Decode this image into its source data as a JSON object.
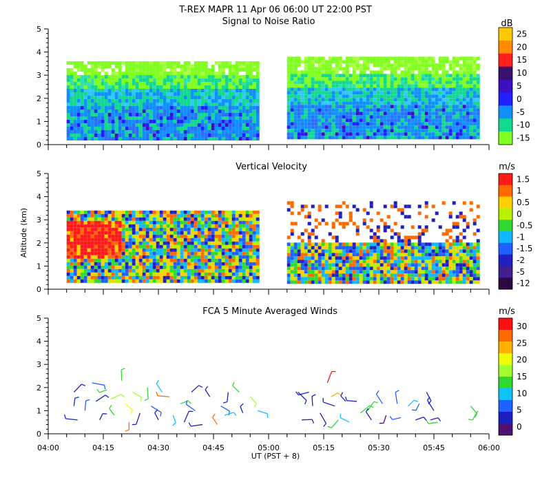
{
  "header": {
    "title": "T-REX   MAPR 11 Apr 06   06:00 UT   22:00   PST"
  },
  "common": {
    "ylabel": "Altitude (km)",
    "xlabel": "UT  (PST + 8)",
    "xticks": [
      "04:00",
      "04:15",
      "04:30",
      "04:45",
      "05:00",
      "05:15",
      "05:30",
      "05:45",
      "06:00"
    ]
  },
  "chart_data": [
    {
      "type": "heatmap",
      "title": "Signal to Noise Ratio",
      "unit": "dB",
      "xlim": [
        "04:00",
        "06:00"
      ],
      "ylim": [
        0,
        5
      ],
      "yticks": [
        "0",
        "1",
        "2",
        "3",
        "4",
        "5"
      ],
      "colorbar": {
        "labels": [
          "25",
          "20",
          "15",
          "10",
          "5",
          "0",
          "-5",
          "-10",
          "-15"
        ],
        "colors": [
          "#ffc800",
          "#ff8a00",
          "#ff2020",
          "#3a1070",
          "#3a10c0",
          "#2020ff",
          "#1090ff",
          "#14d890",
          "#80ff20"
        ]
      },
      "segments": [
        {
          "x": [
            "04:05",
            "04:57"
          ],
          "altitude_km": [
            0.3,
            3.6
          ],
          "dominant_dB": [
            -15,
            -5
          ]
        },
        {
          "x": [
            "05:05",
            "05:57"
          ],
          "altitude_km": [
            0.3,
            3.8
          ],
          "dominant_dB": [
            -15,
            -5
          ]
        }
      ]
    },
    {
      "type": "heatmap",
      "title": "Vertical Velocity",
      "unit": "m/s",
      "xlim": [
        "04:00",
        "06:00"
      ],
      "ylim": [
        0,
        5
      ],
      "yticks": [
        "0",
        "1",
        "2",
        "3",
        "4",
        "5"
      ],
      "colorbar": {
        "labels": [
          "1.5",
          "1",
          "0.5",
          "0",
          "-0.5",
          "-1",
          "-1.5",
          "-2",
          "-5",
          "-12"
        ],
        "colors": [
          "#ff1a1a",
          "#ff6a00",
          "#ffd000",
          "#b8f000",
          "#30d830",
          "#10b8ff",
          "#2060ff",
          "#2020c0",
          "#402090",
          "#2a0a40"
        ]
      },
      "segments": [
        {
          "x": [
            "04:05",
            "04:57"
          ],
          "altitude_km": [
            0.3,
            3.4
          ],
          "dominant_ms": [
            -1.5,
            1.5
          ]
        },
        {
          "x": [
            "05:05",
            "05:57"
          ],
          "altitude_km": [
            0.3,
            3.8
          ],
          "dominant_ms": [
            -1,
            0.5
          ]
        }
      ]
    },
    {
      "type": "scatter",
      "title": "FCA 5 Minute Averaged Winds",
      "unit": "m/s",
      "xlim": [
        "04:00",
        "06:00"
      ],
      "ylim": [
        0,
        5
      ],
      "yticks": [
        "0",
        "1",
        "2",
        "3",
        "4",
        "5"
      ],
      "colorbar": {
        "labels": [
          "30",
          "25",
          "20",
          "15",
          "10",
          "5",
          "0"
        ],
        "colors": [
          "#ff1010",
          "#ff6a00",
          "#ffb000",
          "#f0ff00",
          "#a0ff30",
          "#30d830",
          "#10c0ff",
          "#2060ff",
          "#1a20c0",
          "#501070"
        ]
      },
      "points": [
        [
          "04:07",
          1.8,
          5
        ],
        [
          "04:07",
          1.2,
          3
        ],
        [
          "04:08",
          0.6,
          2
        ],
        [
          "04:10",
          1.0,
          6
        ],
        [
          "04:12",
          2.2,
          8
        ],
        [
          "04:13",
          1.4,
          5
        ],
        [
          "04:14",
          0.6,
          4
        ],
        [
          "04:16",
          1.9,
          13
        ],
        [
          "04:17",
          1.5,
          18
        ],
        [
          "04:18",
          0.8,
          14
        ],
        [
          "04:20",
          2.3,
          12
        ],
        [
          "04:21",
          1.3,
          20
        ],
        [
          "04:22",
          0.5,
          26
        ],
        [
          "04:23",
          1.8,
          16
        ],
        [
          "04:25",
          0.9,
          4
        ],
        [
          "04:27",
          2.0,
          12
        ],
        [
          "04:28",
          1.2,
          6
        ],
        [
          "04:30",
          0.6,
          3
        ],
        [
          "04:31",
          1.8,
          10
        ],
        [
          "04:33",
          1.6,
          27
        ],
        [
          "04:34",
          0.8,
          9
        ],
        [
          "04:36",
          1.3,
          12
        ],
        [
          "04:37",
          0.5,
          4
        ],
        [
          "04:39",
          1.8,
          2
        ],
        [
          "04:40",
          1.0,
          6
        ],
        [
          "04:42",
          0.4,
          5
        ],
        [
          "04:44",
          1.6,
          3
        ],
        [
          "04:46",
          0.4,
          28
        ],
        [
          "04:47",
          1.2,
          8
        ],
        [
          "04:48",
          0.8,
          11
        ],
        [
          "04:49",
          1.8,
          2
        ],
        [
          "04:52",
          1.8,
          12
        ],
        [
          "04:53",
          0.9,
          4
        ],
        [
          "04:55",
          1.6,
          16
        ],
        [
          "04:57",
          1.0,
          9
        ],
        [
          "05:08",
          1.8,
          2
        ],
        [
          "05:09",
          0.6,
          2
        ],
        [
          "05:11",
          1.8,
          3
        ],
        [
          "05:12",
          1.2,
          4
        ],
        [
          "05:14",
          0.9,
          3
        ],
        [
          "05:16",
          2.2,
          30
        ],
        [
          "05:17",
          1.6,
          22
        ],
        [
          "05:18",
          1.2,
          5
        ],
        [
          "05:19",
          0.6,
          15
        ],
        [
          "05:21",
          1.4,
          3
        ],
        [
          "05:22",
          0.5,
          9
        ],
        [
          "05:24",
          1.4,
          4
        ],
        [
          "05:25",
          0.9,
          12
        ],
        [
          "05:27",
          1.0,
          12
        ],
        [
          "05:28",
          0.6,
          5
        ],
        [
          "05:31",
          1.3,
          6
        ],
        [
          "05:32",
          0.8,
          1
        ],
        [
          "05:35",
          1.3,
          6
        ],
        [
          "05:36",
          0.7,
          6
        ],
        [
          "05:38",
          1.2,
          10
        ],
        [
          "05:40",
          0.6,
          2
        ],
        [
          "05:41",
          1.3,
          6
        ],
        [
          "05:43",
          1.8,
          2
        ],
        [
          "05:44",
          0.6,
          5
        ],
        [
          "05:45",
          1.0,
          5
        ],
        [
          "05:46",
          0.5,
          14
        ],
        [
          "05:55",
          1.2,
          15
        ],
        [
          "05:57",
          1.0,
          14
        ]
      ]
    }
  ]
}
